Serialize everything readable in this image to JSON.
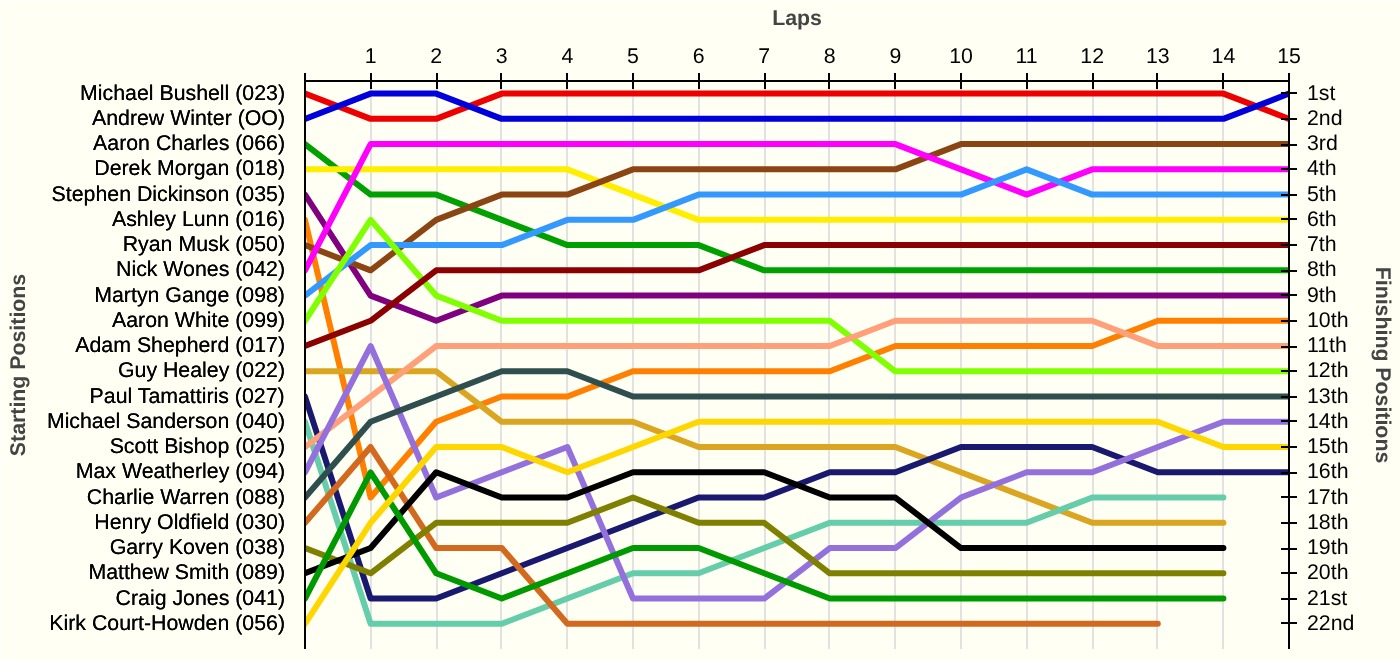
{
  "chart_data": {
    "type": "line",
    "xlabel": "Laps",
    "ylabel": "Finishing Positions",
    "x": [
      0,
      1,
      2,
      3,
      4,
      5,
      6,
      7,
      8,
      9,
      10,
      11,
      12,
      13,
      14,
      15
    ],
    "xlim": [
      0,
      15
    ],
    "xticks": [
      {
        "value": 0,
        "label": null
      },
      1,
      2,
      3,
      4,
      5,
      6,
      7,
      8,
      9,
      10,
      11,
      12,
      13,
      14,
      15
    ],
    "ylim": [
      23,
      0.5
    ],
    "yticks": [
      {
        "value": 1,
        "label": "1st"
      },
      {
        "value": 2,
        "label": "2nd"
      },
      {
        "value": 3,
        "label": "3rd"
      },
      {
        "value": 4,
        "label": "4th"
      },
      {
        "value": 5,
        "label": "5th"
      },
      {
        "value": 6,
        "label": "6th"
      },
      {
        "value": 7,
        "label": "7th"
      },
      {
        "value": 8,
        "label": "8th"
      },
      {
        "value": 9,
        "label": "9th"
      },
      {
        "value": 10,
        "label": "10th"
      },
      {
        "value": 11,
        "label": "11th"
      },
      {
        "value": 12,
        "label": "12th"
      },
      {
        "value": 13,
        "label": "13th"
      },
      {
        "value": 14,
        "label": "14th"
      },
      {
        "value": 15,
        "label": "15th"
      },
      {
        "value": 16,
        "label": "16th"
      },
      {
        "value": 17,
        "label": "17th"
      },
      {
        "value": 18,
        "label": "18th"
      },
      {
        "value": 19,
        "label": "19th"
      },
      {
        "value": 20,
        "label": "20th"
      },
      {
        "value": 21,
        "label": "21st"
      },
      {
        "value": 22,
        "label": "22nd"
      }
    ],
    "annotations": [
      "Starting Positions"
    ],
    "grid": "x",
    "series": [
      {
        "name": "Michael Bushell (023)",
        "color": "#ee0000",
        "values": [
          1,
          2,
          2,
          1,
          1,
          1,
          1,
          1,
          1,
          1,
          1,
          1,
          1,
          1,
          1,
          2
        ]
      },
      {
        "name": "Andrew Winter (OO)",
        "color": "#0000dd",
        "values": [
          2,
          1,
          1,
          2,
          2,
          2,
          2,
          2,
          2,
          2,
          2,
          2,
          2,
          2,
          2,
          1
        ]
      },
      {
        "name": "Aaron Charles (066)",
        "color": "#00a000",
        "values": [
          3,
          5,
          5,
          6,
          7,
          7,
          7,
          8,
          8,
          8,
          8,
          8,
          8,
          8,
          8,
          8
        ]
      },
      {
        "name": "Derek Morgan (018)",
        "color": "#ffee00",
        "values": [
          4,
          4,
          4,
          4,
          4,
          5,
          6,
          6,
          6,
          6,
          6,
          6,
          6,
          6,
          6,
          6
        ]
      },
      {
        "name": "Stephen Dickinson (035)",
        "color": "#800080",
        "values": [
          5,
          9,
          10,
          9,
          9,
          9,
          9,
          9,
          9,
          9,
          9,
          9,
          9,
          9,
          9,
          9
        ]
      },
      {
        "name": "Ashley Lunn (016)",
        "color": "#ff8000",
        "values": [
          6,
          17,
          14,
          13,
          13,
          12,
          12,
          12,
          12,
          11,
          11,
          11,
          11,
          10,
          10,
          10
        ]
      },
      {
        "name": "Ryan Musk (050)",
        "color": "#8b4513",
        "values": [
          7,
          8,
          6,
          5,
          5,
          4,
          4,
          4,
          4,
          4,
          3,
          3,
          3,
          3,
          3,
          3
        ]
      },
      {
        "name": "Nick Wones (042)",
        "color": "#ff00ff",
        "values": [
          8,
          3,
          3,
          3,
          3,
          3,
          3,
          3,
          3,
          3,
          4,
          5,
          4,
          4,
          4,
          4
        ]
      },
      {
        "name": "Martyn Gange (098)",
        "color": "#3399ff",
        "values": [
          9,
          7,
          7,
          7,
          6,
          6,
          5,
          5,
          5,
          5,
          5,
          4,
          5,
          5,
          5,
          5
        ]
      },
      {
        "name": "Aaron White (099)",
        "color": "#80ff00",
        "values": [
          10,
          6,
          9,
          10,
          10,
          10,
          10,
          10,
          10,
          12,
          12,
          12,
          12,
          12,
          12,
          12
        ]
      },
      {
        "name": "Adam Shepherd (017)",
        "color": "#8b0000",
        "values": [
          11,
          10,
          8,
          8,
          8,
          8,
          8,
          7,
          7,
          7,
          7,
          7,
          7,
          7,
          7,
          7
        ]
      },
      {
        "name": "Guy Healey (022)",
        "color": "#daa520",
        "values": [
          12,
          12,
          12,
          14,
          14,
          14,
          15,
          15,
          15,
          15,
          16,
          17,
          18,
          18,
          18,
          null
        ]
      },
      {
        "name": "Paul Tamattiris (027)",
        "color": "#191970",
        "values": [
          13,
          21,
          21,
          20,
          19,
          18,
          17,
          17,
          16,
          16,
          15,
          15,
          15,
          16,
          16,
          16
        ]
      },
      {
        "name": "Michael Sanderson (040)",
        "color": "#66cdaa",
        "values": [
          14,
          22,
          22,
          22,
          21,
          20,
          20,
          19,
          18,
          18,
          18,
          18,
          17,
          17,
          17,
          null
        ]
      },
      {
        "name": "Scott Bishop (025)",
        "color": "#ffa07a",
        "values": [
          15,
          13,
          11,
          11,
          11,
          11,
          11,
          11,
          11,
          10,
          10,
          10,
          10,
          11,
          11,
          11
        ]
      },
      {
        "name": "Max Weatherley (094)",
        "color": "#9370db",
        "values": [
          16,
          11,
          17,
          16,
          15,
          21,
          21,
          21,
          19,
          19,
          17,
          16,
          16,
          15,
          14,
          14
        ]
      },
      {
        "name": "Charlie Warren (088)",
        "color": "#2f4f4f",
        "values": [
          17,
          14,
          13,
          12,
          12,
          13,
          13,
          13,
          13,
          13,
          13,
          13,
          13,
          13,
          13,
          13
        ]
      },
      {
        "name": "Henry Oldfield (030)",
        "color": "#d2691e",
        "values": [
          18,
          15,
          19,
          19,
          22,
          22,
          22,
          22,
          22,
          22,
          22,
          22,
          22,
          22,
          null,
          null
        ]
      },
      {
        "name": "Garry Koven (038)",
        "color": "#808000",
        "values": [
          19,
          20,
          18,
          18,
          18,
          17,
          18,
          18,
          20,
          20,
          20,
          20,
          20,
          20,
          20,
          null
        ]
      },
      {
        "name": "Matthew Smith (089)",
        "color": "#000000",
        "values": [
          20,
          19,
          16,
          17,
          17,
          16,
          16,
          16,
          17,
          17,
          19,
          19,
          19,
          19,
          19,
          null
        ]
      },
      {
        "name": "Craig Jones (041)",
        "color": "#009900",
        "values": [
          21,
          16,
          20,
          21,
          20,
          19,
          19,
          20,
          21,
          21,
          21,
          21,
          21,
          21,
          21,
          null
        ]
      },
      {
        "name": "Kirk Court-Howden (056)",
        "color": "#ffd700",
        "values": [
          22,
          18,
          15,
          15,
          16,
          15,
          14,
          14,
          14,
          14,
          14,
          14,
          14,
          14,
          15,
          15
        ]
      }
    ]
  }
}
